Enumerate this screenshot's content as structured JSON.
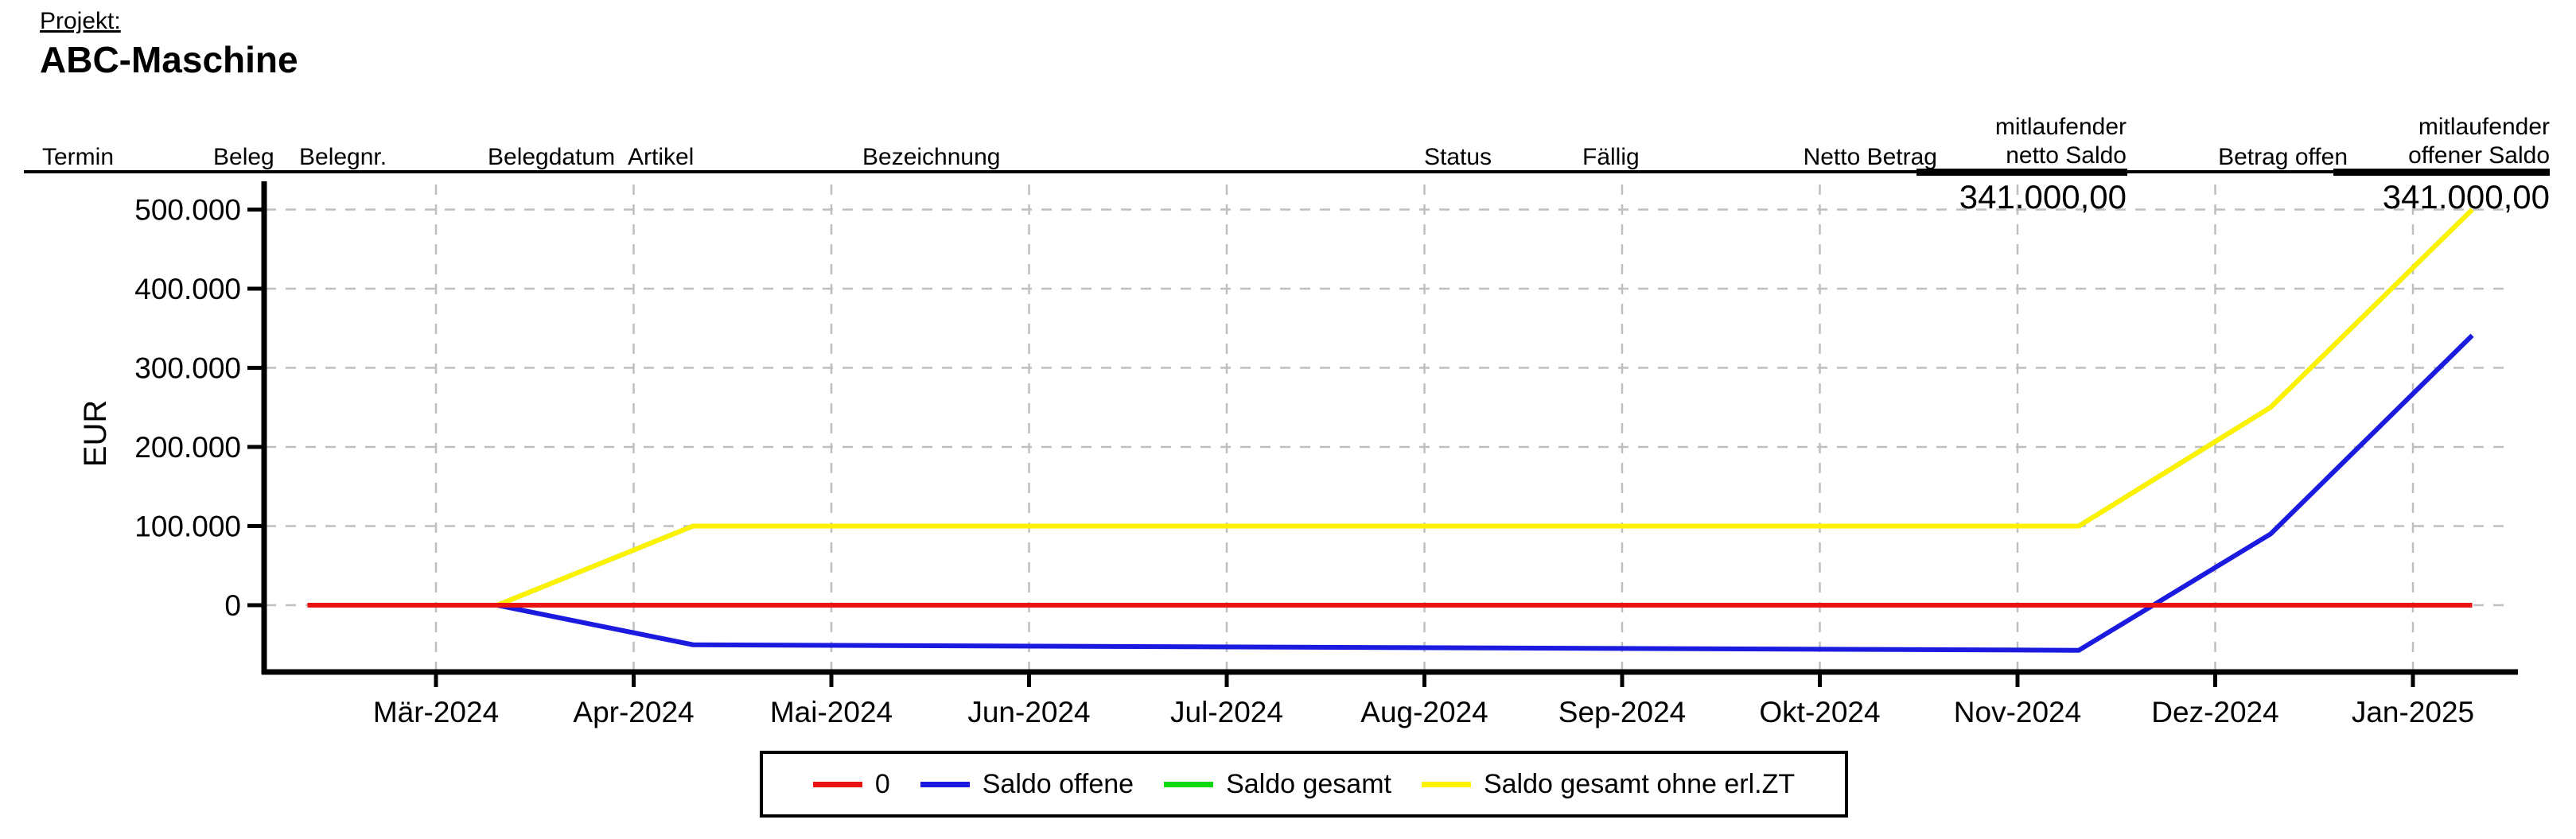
{
  "header": {
    "project_label": "Projekt:",
    "project_name": "ABC-Maschine",
    "columns": {
      "termin": "Termin",
      "beleg": "Beleg",
      "belegnr": "Belegnr.",
      "belegdatum": "Belegdatum",
      "artikel": "Artikel",
      "bezeichnung": "Bezeichnung",
      "status": "Status",
      "faellig": "Fällig",
      "netto_betrag": "Netto Betrag",
      "mitlaufender_netto_saldo": "mitlaufender\nnetto Saldo",
      "betrag_offen": "Betrag offen",
      "mitlaufender_offener_saldo": "mitlaufender\noffener Saldo"
    },
    "totals": {
      "mitlaufender_netto_saldo": "341.000,00",
      "mitlaufender_offener_saldo": "341.000,00"
    }
  },
  "chart_data": {
    "type": "line",
    "ylabel": "EUR",
    "grid": true,
    "grid_color": "#bfbfbf",
    "legend_position": "bottom-center",
    "x_ticks": [
      "Mär-2024",
      "Apr-2024",
      "Mai-2024",
      "Jun-2024",
      "Jul-2024",
      "Aug-2024",
      "Sep-2024",
      "Okt-2024",
      "Nov-2024",
      "Dez-2024",
      "Jan-2025"
    ],
    "y_ticks": [
      "0",
      "100.000",
      "200.000",
      "300.000",
      "400.000",
      "500.000"
    ],
    "y_tick_values": [
      0,
      100000,
      200000,
      300000,
      400000,
      500000
    ],
    "ylim": [
      -85000,
      535000
    ],
    "x_note": "x given in months relative to the Mär-2024 tick; data runs ~10.Feb.2024 to ~10.Jan.2025",
    "series": [
      {
        "name": "0",
        "color": "#e81414",
        "points": [
          [
            -0.65,
            0
          ],
          [
            10.3,
            0
          ]
        ]
      },
      {
        "name": "Saldo offene",
        "color": "#1b1be0",
        "points": [
          [
            -0.65,
            0
          ],
          [
            0.31,
            0
          ],
          [
            1.3,
            -50000
          ],
          [
            8.31,
            -57000
          ],
          [
            9.28,
            90000
          ],
          [
            10.3,
            341000
          ]
        ]
      },
      {
        "name": "Saldo gesamt",
        "color": "#0bd90b",
        "points": [
          [
            -0.65,
            0
          ],
          [
            0.31,
            0
          ],
          [
            1.3,
            100000
          ],
          [
            8.31,
            100000
          ],
          [
            9.28,
            250000
          ],
          [
            10.3,
            500000
          ]
        ]
      },
      {
        "name": "Saldo gesamt ohne erl.ZT",
        "color": "#fff200",
        "points": [
          [
            -0.65,
            0
          ],
          [
            0.31,
            0
          ],
          [
            1.3,
            100000
          ],
          [
            8.31,
            100000
          ],
          [
            9.28,
            250000
          ],
          [
            10.3,
            500000
          ]
        ]
      }
    ],
    "draw_order": [
      2,
      3,
      1,
      0
    ]
  }
}
